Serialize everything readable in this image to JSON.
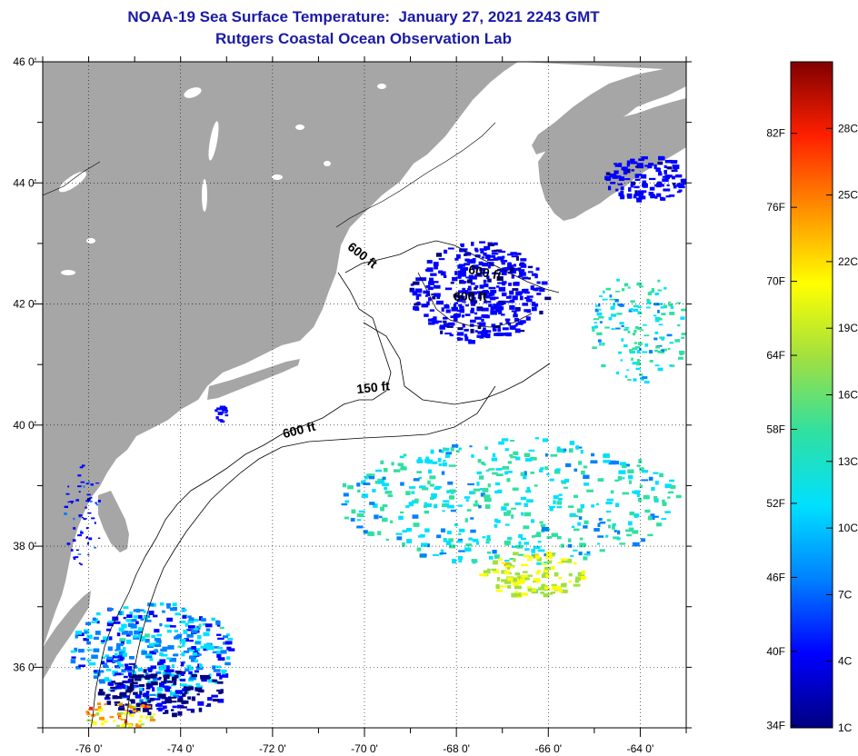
{
  "header": {
    "title": "NOAA-19 Sea Surface Temperature:  January 27, 2021 2243 GMT",
    "subtitle": "Rutgers Coastal Ocean Observation Lab"
  },
  "map": {
    "lon_range": [
      -77,
      -63
    ],
    "lat_range": [
      35,
      46
    ],
    "lon_ticks": [
      {
        "value": -76,
        "label": "-76 0'"
      },
      {
        "value": -74,
        "label": "-74 0'"
      },
      {
        "value": -72,
        "label": "-72 0'"
      },
      {
        "value": -70,
        "label": "-70 0'"
      },
      {
        "value": -68,
        "label": "-68 0'"
      },
      {
        "value": -66,
        "label": "-66 0'"
      },
      {
        "value": -64,
        "label": "-64 0'"
      }
    ],
    "lat_ticks": [
      {
        "value": 46,
        "label": "46 0'"
      },
      {
        "value": 44,
        "label": "44 0'"
      },
      {
        "value": 42,
        "label": "42 0'"
      },
      {
        "value": 40,
        "label": "40 0'"
      },
      {
        "value": 38,
        "label": "38 0'"
      },
      {
        "value": 36,
        "label": "36 0'"
      }
    ],
    "contour_labels": [
      {
        "text": "600 ft",
        "lon": -70.1,
        "lat": 42.75,
        "rotate": 38
      },
      {
        "text": "600 ft",
        "lon": -67.4,
        "lat": 42.45,
        "rotate": 12
      },
      {
        "text": "600 ft",
        "lon": -67.7,
        "lat": 42.05,
        "rotate": 0
      },
      {
        "text": "150 ft",
        "lon": -69.8,
        "lat": 40.55,
        "rotate": -6
      },
      {
        "text": "600 ft",
        "lon": -71.4,
        "lat": 39.85,
        "rotate": -14
      }
    ],
    "colors": {
      "land": "#a6a6a6",
      "no_data": "#ffffff"
    }
  },
  "colorbar": {
    "min_c": 1,
    "max_c": 31,
    "fahrenheit_labels": [
      {
        "label": "34F",
        "value_f": 34
      },
      {
        "label": "40F",
        "value_f": 40
      },
      {
        "label": "46F",
        "value_f": 46
      },
      {
        "label": "52F",
        "value_f": 52
      },
      {
        "label": "58F",
        "value_f": 58
      },
      {
        "label": "64F",
        "value_f": 64
      },
      {
        "label": "70F",
        "value_f": 70
      },
      {
        "label": "76F",
        "value_f": 76
      },
      {
        "label": "82F",
        "value_f": 82
      }
    ],
    "celsius_labels": [
      {
        "label": "1C",
        "value_c": 1
      },
      {
        "label": "4C",
        "value_c": 4
      },
      {
        "label": "7C",
        "value_c": 7
      },
      {
        "label": "10C",
        "value_c": 10
      },
      {
        "label": "13C",
        "value_c": 13
      },
      {
        "label": "16C",
        "value_c": 16
      },
      {
        "label": "19C",
        "value_c": 19
      },
      {
        "label": "22C",
        "value_c": 22
      },
      {
        "label": "25C",
        "value_c": 25
      },
      {
        "label": "28C",
        "value_c": 28
      }
    ],
    "stops": [
      "#000080",
      "#0000ff",
      "#0080ff",
      "#00e0ff",
      "#30e0a0",
      "#a0e040",
      "#ffff00",
      "#ff9000",
      "#ff2000",
      "#800000"
    ]
  }
}
